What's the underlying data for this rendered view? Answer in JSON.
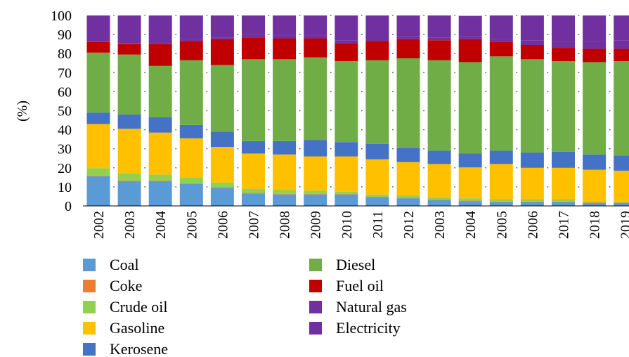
{
  "chart_data": {
    "type": "bar",
    "stacked": true,
    "ylabel": "(%)",
    "xlabel": "",
    "ylim": [
      0,
      100
    ],
    "yticks": [
      0,
      10,
      20,
      30,
      40,
      50,
      60,
      70,
      80,
      90,
      100
    ],
    "categories": [
      "2002",
      "2003",
      "2004",
      "2005",
      "2006",
      "2007",
      "2008",
      "2009",
      "2010",
      "2011",
      "2012",
      "2003",
      "2004",
      "2005",
      "2006",
      "2017",
      "2018",
      "2019"
    ],
    "grid": false,
    "legend_position": "bottom",
    "series": [
      {
        "name": "Coal",
        "color": "#5B9BD5",
        "values": [
          15.5,
          13,
          13,
          11.5,
          9.5,
          6.5,
          6,
          6,
          6,
          4.5,
          4,
          3,
          2.5,
          2,
          2,
          2,
          1.5,
          1.5
        ]
      },
      {
        "name": "Coke",
        "color": "#ED7D31",
        "values": [
          0.3,
          0.3,
          0.3,
          0.3,
          0.3,
          0.3,
          0.3,
          0.3,
          0.3,
          0.3,
          0.3,
          0.3,
          0.3,
          0.3,
          0.3,
          0.3,
          0.3,
          0.2
        ]
      },
      {
        "name": "Crude oil",
        "color": "#92D050",
        "values": [
          4,
          3.7,
          3.2,
          3.2,
          2.5,
          2.2,
          2,
          1.7,
          1.2,
          1.2,
          1.2,
          1.2,
          1.2,
          1.2,
          1.2,
          1.2,
          0.7,
          0.6
        ]
      },
      {
        "name": "Gasoline",
        "color": "#FFC000",
        "values": [
          23.2,
          23.5,
          22,
          20.5,
          18.7,
          18.5,
          18.7,
          18,
          18.5,
          18.5,
          17.5,
          17.5,
          16.2,
          18.5,
          16.5,
          16.5,
          16.5,
          16.2
        ]
      },
      {
        "name": "Kerosene",
        "color": "#4472C4",
        "values": [
          6,
          7.5,
          8,
          7,
          8,
          6.5,
          7,
          8.5,
          7.5,
          8,
          7.5,
          7,
          7.3,
          7,
          8,
          8.5,
          8,
          8
        ]
      },
      {
        "name": "Diesel",
        "color": "#70AD47",
        "values": [
          31.5,
          31.5,
          27,
          34,
          35,
          43,
          43,
          43.5,
          42.5,
          44,
          47,
          47.5,
          48,
          49.5,
          49,
          47.5,
          48.5,
          49.5
        ]
      },
      {
        "name": "Fuel oil",
        "color": "#C00000",
        "values": [
          5.5,
          5.5,
          11.5,
          10,
          13.5,
          11.5,
          11,
          10,
          9.5,
          10,
          10,
          10.5,
          12,
          7.5,
          7.5,
          7,
          7,
          6.5
        ]
      },
      {
        "name": "Natural gas",
        "color": "#7030A0",
        "values": [
          0.3,
          0.5,
          0.8,
          1,
          1,
          1.5,
          1.5,
          1.5,
          1.5,
          1.5,
          1.5,
          1.5,
          1.5,
          1.5,
          2.5,
          3,
          4,
          4.5
        ]
      },
      {
        "name": "Electricity",
        "color": "#7030A0",
        "values": [
          13.7,
          14.5,
          14.2,
          12.5,
          11.5,
          10,
          10.5,
          10.5,
          13,
          12,
          11,
          11.5,
          10.8,
          12.5,
          13,
          14,
          13.5,
          13
        ]
      }
    ]
  }
}
